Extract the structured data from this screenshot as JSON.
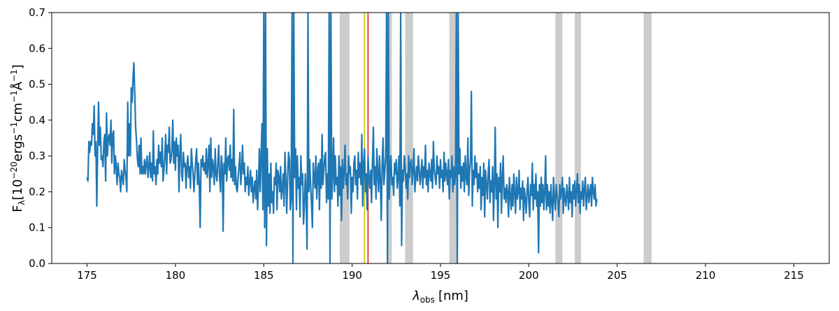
{
  "chart_data": {
    "type": "line",
    "title": "",
    "xlabel": {
      "symbol": "λ",
      "sub": "obs",
      "unit": "[nm]"
    },
    "ylabel": {
      "F": "F",
      "sub": "λ",
      "bracket_open": "[10",
      "e1": "−20",
      "t1": "ergs",
      "e2": "−1",
      "t2": "cm",
      "e3": "−1",
      "t3": "Å",
      "e4": "−1",
      "bracket_close": "]"
    },
    "xlim": [
      173,
      217
    ],
    "ylim": [
      0.0,
      0.7
    ],
    "xticks": [
      "175",
      "180",
      "185",
      "190",
      "195",
      "200",
      "205",
      "210",
      "215"
    ],
    "yticks": [
      "0.0",
      "0.1",
      "0.2",
      "0.3",
      "0.4",
      "0.5",
      "0.6",
      "0.7"
    ],
    "grid": false,
    "colors": {
      "line": "#1f77b4",
      "masked_band": "#cccccc",
      "marker_yellow": "#c8c800",
      "marker_red": "#e41a1c"
    },
    "masked_bands": [
      [
        189.3,
        189.85
      ],
      [
        191.95,
        192.25
      ],
      [
        193.0,
        193.45
      ],
      [
        195.5,
        196.0
      ],
      [
        201.5,
        201.9
      ],
      [
        202.6,
        202.95
      ],
      [
        206.5,
        206.95
      ]
    ],
    "vertical_markers": [
      {
        "x": 190.7,
        "color": "yellow"
      },
      {
        "x": 190.9,
        "color": "red"
      }
    ],
    "series": [
      {
        "x_start": 175.0,
        "x_step": 0.05,
        "y": [
          0.24,
          0.23,
          0.34,
          0.31,
          0.34,
          0.33,
          0.39,
          0.36,
          0.44,
          0.3,
          0.34,
          0.16,
          0.32,
          0.45,
          0.33,
          0.38,
          0.29,
          0.3,
          0.27,
          0.34,
          0.36,
          0.23,
          0.42,
          0.3,
          0.35,
          0.36,
          0.33,
          0.4,
          0.28,
          0.36,
          0.37,
          0.25,
          0.3,
          0.27,
          0.22,
          0.28,
          0.25,
          0.24,
          0.2,
          0.26,
          0.24,
          0.22,
          0.29,
          0.26,
          0.24,
          0.2,
          0.45,
          0.3,
          0.39,
          0.3,
          0.49,
          0.45,
          0.52,
          0.56,
          0.47,
          0.38,
          0.34,
          0.29,
          0.27,
          0.33,
          0.25,
          0.35,
          0.25,
          0.27,
          0.25,
          0.29,
          0.25,
          0.28,
          0.3,
          0.24,
          0.27,
          0.31,
          0.24,
          0.28,
          0.23,
          0.37,
          0.25,
          0.27,
          0.22,
          0.29,
          0.25,
          0.33,
          0.28,
          0.31,
          0.27,
          0.35,
          0.23,
          0.26,
          0.3,
          0.36,
          0.25,
          0.33,
          0.31,
          0.38,
          0.28,
          0.29,
          0.32,
          0.4,
          0.28,
          0.34,
          0.26,
          0.35,
          0.3,
          0.33,
          0.2,
          0.3,
          0.36,
          0.25,
          0.23,
          0.31,
          0.27,
          0.28,
          0.21,
          0.27,
          0.3,
          0.24,
          0.27,
          0.21,
          0.32,
          0.28,
          0.25,
          0.2,
          0.25,
          0.29,
          0.32,
          0.22,
          0.28,
          0.22,
          0.1,
          0.29,
          0.27,
          0.3,
          0.26,
          0.28,
          0.25,
          0.32,
          0.24,
          0.28,
          0.33,
          0.2,
          0.35,
          0.24,
          0.29,
          0.27,
          0.22,
          0.32,
          0.25,
          0.23,
          0.28,
          0.33,
          0.24,
          0.2,
          0.3,
          0.27,
          0.09,
          0.28,
          0.25,
          0.35,
          0.23,
          0.29,
          0.3,
          0.26,
          0.33,
          0.24,
          0.29,
          0.23,
          0.43,
          0.22,
          0.27,
          0.21,
          0.2,
          0.24,
          0.27,
          0.31,
          0.22,
          0.26,
          0.33,
          0.25,
          0.28,
          0.2,
          0.24,
          0.22,
          0.27,
          0.19,
          0.23,
          0.26,
          0.2,
          0.24,
          0.17,
          0.21,
          0.23,
          0.18,
          0.26,
          0.15,
          0.22,
          0.32,
          0.2,
          0.3,
          0.39,
          0.15,
          0.7,
          0.1,
          0.7,
          0.05,
          0.32,
          0.16,
          0.25,
          0.14,
          0.28,
          0.17,
          0.2,
          0.14,
          0.24,
          0.22,
          0.28,
          0.15,
          0.26,
          0.24,
          0.2,
          0.27,
          0.18,
          0.21,
          0.25,
          0.16,
          0.31,
          0.23,
          0.14,
          0.24,
          0.31,
          0.29,
          0.15,
          0.18,
          0.7,
          0.0,
          0.7,
          0.24,
          0.32,
          0.15,
          0.3,
          0.21,
          0.24,
          0.13,
          0.3,
          0.22,
          0.25,
          0.11,
          0.16,
          0.25,
          0.18,
          0.04,
          0.7,
          0.2,
          0.29,
          0.22,
          0.17,
          0.1,
          0.28,
          0.24,
          0.21,
          0.3,
          0.18,
          0.26,
          0.28,
          0.15,
          0.29,
          0.21,
          0.36,
          0.22,
          0.26,
          0.3,
          0.31,
          0.17,
          0.25,
          0.18,
          0.7,
          0.0,
          0.7,
          0.18,
          0.24,
          0.35,
          0.2,
          0.3,
          0.22,
          0.24,
          0.16,
          0.3,
          0.19,
          0.27,
          0.12,
          0.29,
          0.21,
          0.26,
          0.33,
          0.22,
          0.25,
          0.18,
          0.3,
          0.25,
          0.27,
          0.14,
          0.24,
          0.2,
          0.28,
          0.3,
          0.22,
          0.26,
          0.18,
          0.31,
          0.24,
          0.28,
          0.22,
          0.36,
          0.16,
          0.28,
          0.32,
          0.2,
          0.25,
          0.15,
          0.3,
          0.24,
          0.21,
          0.26,
          0.17,
          0.28,
          0.38,
          0.22,
          0.27,
          0.18,
          0.32,
          0.25,
          0.2,
          0.3,
          0.23,
          0.12,
          0.28,
          0.35,
          0.22,
          0.26,
          0.3,
          0.7,
          0.0,
          0.7,
          0.18,
          0.26,
          0.3,
          0.22,
          0.24,
          0.19,
          0.28,
          0.25,
          0.29,
          0.21,
          0.24,
          0.3,
          0.16,
          0.7,
          0.05,
          0.26,
          0.23,
          0.3,
          0.27,
          0.21,
          0.25,
          0.18,
          0.3,
          0.24,
          0.28,
          0.29,
          0.22,
          0.26,
          0.32,
          0.2,
          0.24,
          0.27,
          0.23,
          0.3,
          0.26,
          0.22,
          0.25,
          0.29,
          0.21,
          0.27,
          0.24,
          0.33,
          0.22,
          0.26,
          0.2,
          0.28,
          0.25,
          0.23,
          0.29,
          0.21,
          0.34,
          0.26,
          0.24,
          0.22,
          0.3,
          0.25,
          0.27,
          0.21,
          0.29,
          0.24,
          0.26,
          0.2,
          0.31,
          0.23,
          0.28,
          0.25,
          0.22,
          0.29,
          0.18,
          0.26,
          0.24,
          0.3,
          0.2,
          0.27,
          0.22,
          0.25,
          0.7,
          0.0,
          0.7,
          0.25,
          0.32,
          0.21,
          0.27,
          0.23,
          0.28,
          0.2,
          0.3,
          0.24,
          0.22,
          0.35,
          0.19,
          0.26,
          0.29,
          0.48,
          0.16,
          0.26,
          0.22,
          0.3,
          0.24,
          0.28,
          0.2,
          0.25,
          0.21,
          0.27,
          0.15,
          0.24,
          0.19,
          0.28,
          0.13,
          0.26,
          0.22,
          0.18,
          0.25,
          0.29,
          0.17,
          0.23,
          0.2,
          0.27,
          0.12,
          0.22,
          0.38,
          0.18,
          0.25,
          0.1,
          0.24,
          0.2,
          0.28,
          0.14,
          0.24,
          0.3,
          0.18,
          0.21,
          0.17,
          0.22,
          0.2,
          0.13,
          0.24,
          0.19,
          0.15,
          0.22,
          0.16,
          0.25,
          0.2,
          0.14,
          0.24,
          0.18,
          0.2,
          0.26,
          0.15,
          0.21,
          0.18,
          0.23,
          0.12,
          0.21,
          0.18,
          0.14,
          0.2,
          0.24,
          0.17,
          0.13,
          0.22,
          0.19,
          0.28,
          0.15,
          0.22,
          0.18,
          0.25,
          0.16,
          0.2,
          0.03,
          0.22,
          0.16,
          0.24,
          0.17,
          0.22,
          0.15,
          0.2,
          0.3,
          0.15,
          0.22,
          0.16,
          0.2,
          0.14,
          0.22,
          0.17,
          0.12,
          0.24,
          0.18,
          0.15,
          0.22,
          0.19,
          0.17,
          0.13,
          0.22,
          0.18,
          0.2,
          0.24,
          0.14,
          0.21,
          0.18,
          0.16,
          0.22,
          0.19,
          0.15,
          0.24,
          0.17,
          0.2,
          0.13,
          0.22,
          0.18,
          0.23,
          0.16,
          0.2,
          0.25,
          0.17,
          0.22,
          0.14,
          0.2,
          0.18,
          0.23,
          0.16,
          0.21,
          0.24,
          0.15,
          0.19,
          0.22,
          0.17,
          0.2,
          0.22,
          0.16,
          0.24,
          0.2,
          0.18,
          0.22,
          0.16,
          0.18
        ]
      }
    ]
  }
}
